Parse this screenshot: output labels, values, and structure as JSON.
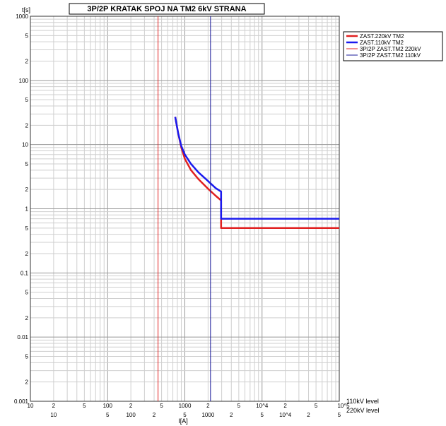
{
  "chart_data": {
    "type": "line",
    "title": "3P/2P KRATAK SPOJ NA TM2 6kV STRANA",
    "ylabel": "t[s]",
    "xlabel": "I[A]",
    "x_scale": "log",
    "y_scale": "log",
    "xlim": [
      10,
      100000
    ],
    "ylim": [
      0.001,
      1000
    ],
    "grid": true,
    "legend_position": "top-right",
    "x_axis_110kV": {
      "label": "110kV level",
      "ticks": [
        {
          "v": 10,
          "t": "10"
        },
        {
          "v": 20,
          "t": "2"
        },
        {
          "v": 50,
          "t": "5"
        },
        {
          "v": 100,
          "t": "100"
        },
        {
          "v": 200,
          "t": "2"
        },
        {
          "v": 500,
          "t": "5"
        },
        {
          "v": 1000,
          "t": "1000"
        },
        {
          "v": 2000,
          "t": "2"
        },
        {
          "v": 5000,
          "t": "5"
        },
        {
          "v": 10000,
          "t": "10^4"
        },
        {
          "v": 20000,
          "t": "2"
        },
        {
          "v": 50000,
          "t": "5"
        },
        {
          "v": 100000,
          "t": "10^5"
        }
      ]
    },
    "x_axis_220kV": {
      "label": "220kV level",
      "ticks": [
        {
          "v": 20,
          "t": "10"
        },
        {
          "v": 100,
          "t": "5"
        },
        {
          "v": 200,
          "t": "100"
        },
        {
          "v": 400,
          "t": "2"
        },
        {
          "v": 1000,
          "t": "5"
        },
        {
          "v": 2000,
          "t": "1000"
        },
        {
          "v": 4000,
          "t": "2"
        },
        {
          "v": 10000,
          "t": "5"
        },
        {
          "v": 20000,
          "t": "10^4"
        },
        {
          "v": 40000,
          "t": "2"
        },
        {
          "v": 100000,
          "t": "5"
        }
      ]
    },
    "y_ticks": [
      {
        "v": 1000,
        "t": "1000"
      },
      {
        "v": 500,
        "t": "5"
      },
      {
        "v": 200,
        "t": "2"
      },
      {
        "v": 100,
        "t": "100"
      },
      {
        "v": 50,
        "t": "5"
      },
      {
        "v": 20,
        "t": "2"
      },
      {
        "v": 10,
        "t": "10"
      },
      {
        "v": 5,
        "t": "5"
      },
      {
        "v": 2,
        "t": "2"
      },
      {
        "v": 1,
        "t": "1"
      },
      {
        "v": 0.5,
        "t": "5"
      },
      {
        "v": 0.2,
        "t": "2"
      },
      {
        "v": 0.1,
        "t": "0.1"
      },
      {
        "v": 0.05,
        "t": "5"
      },
      {
        "v": 0.02,
        "t": "2"
      },
      {
        "v": 0.01,
        "t": "0.01"
      },
      {
        "v": 0.005,
        "t": "5"
      },
      {
        "v": 0.002,
        "t": "2"
      },
      {
        "v": 0.001,
        "t": "0.001"
      }
    ],
    "series": [
      {
        "name": "ZAST.220kV TM2",
        "color": "#e02020",
        "style": "curve",
        "points": [
          [
            750,
            27
          ],
          [
            820,
            15
          ],
          [
            900,
            9
          ],
          [
            1000,
            6
          ],
          [
            1200,
            4
          ],
          [
            1500,
            2.9
          ],
          [
            2000,
            2.05
          ],
          [
            2500,
            1.6
          ],
          [
            2950,
            1.35
          ],
          [
            2950,
            0.5
          ],
          [
            100000,
            0.5
          ]
        ]
      },
      {
        "name": "ZAST.110kV TM2",
        "color": "#1a1aee",
        "style": "curve",
        "points": [
          [
            750,
            27
          ],
          [
            820,
            15
          ],
          [
            900,
            9.5
          ],
          [
            1000,
            7
          ],
          [
            1200,
            5
          ],
          [
            1500,
            3.7
          ],
          [
            2000,
            2.7
          ],
          [
            2500,
            2.1
          ],
          [
            2950,
            1.85
          ],
          [
            2950,
            0.7
          ],
          [
            100000,
            0.7
          ]
        ]
      },
      {
        "name": "3P/2P ZAST.TM2 220kV",
        "color": "#e02020",
        "style": "vline",
        "x": 450
      },
      {
        "name": "3P/2P ZAST.TM2 110kV",
        "color": "#1a1a99",
        "style": "vline",
        "x": 2150
      }
    ]
  }
}
